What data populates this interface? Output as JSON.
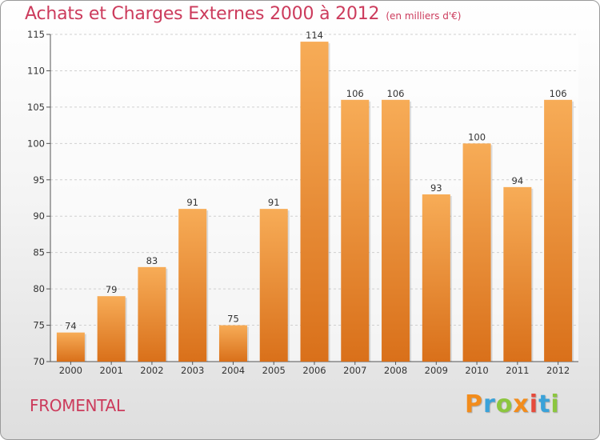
{
  "header": {
    "title": "Achats et Charges Externes 2000 à 2012",
    "subtitle": "(en milliers d'€)"
  },
  "commune": "FROMENTAL",
  "logo": {
    "letters": [
      "P",
      "r",
      "o",
      "x",
      "i",
      "t",
      "i"
    ],
    "colors": [
      "#f28c1c",
      "#3aa2d9",
      "#8cc63f",
      "#f28c1c",
      "#e64b3c",
      "#3aa2d9",
      "#8cc63f"
    ]
  },
  "colors": {
    "bar": "#f0952f",
    "bar_light": "#f7ac57",
    "bar_dark": "#d9701a",
    "accent": "#cc3b5c"
  },
  "chart_data": {
    "type": "bar",
    "title": "Achats et Charges Externes 2000 à 2012",
    "subtitle": "(en milliers d'€)",
    "categories": [
      "2000",
      "2001",
      "2002",
      "2003",
      "2004",
      "2005",
      "2006",
      "2007",
      "2008",
      "2009",
      "2010",
      "2011",
      "2012"
    ],
    "values": [
      74,
      79,
      83,
      91,
      75,
      91,
      114,
      106,
      106,
      93,
      100,
      94,
      106
    ],
    "ylim": [
      70,
      115
    ],
    "yticks": [
      70,
      75,
      80,
      85,
      90,
      95,
      100,
      105,
      110,
      115
    ],
    "grid": true,
    "legend": "none"
  }
}
